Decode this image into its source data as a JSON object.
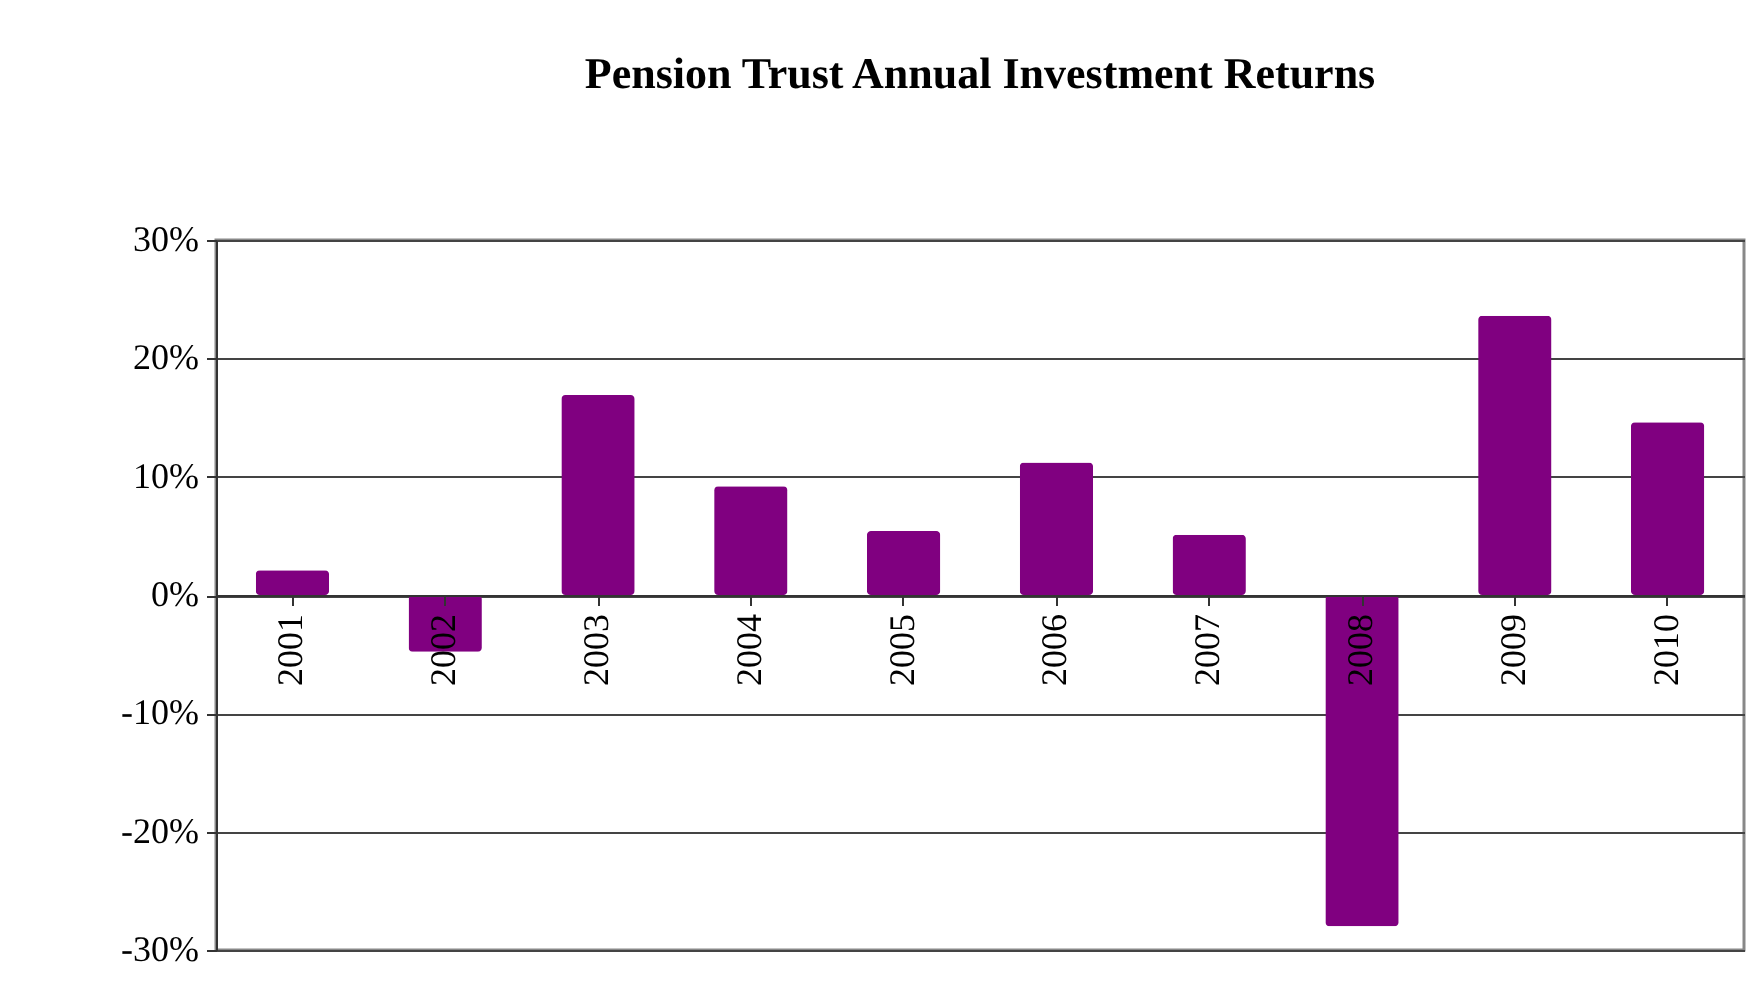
{
  "chart_data": {
    "type": "bar",
    "title": "Pension Trust Annual Investment Returns",
    "categories": [
      "2001",
      "2002",
      "2003",
      "2004",
      "2005",
      "2006",
      "2007",
      "2008",
      "2009",
      "2010"
    ],
    "values": [
      2.1,
      -4.8,
      16.9,
      9.2,
      5.4,
      11.2,
      5.1,
      -28.0,
      23.6,
      14.6
    ],
    "color": "#800080",
    "ylim": [
      -30,
      30
    ],
    "yticks": [
      {
        "value": -30,
        "label": "-30%"
      },
      {
        "value": -20,
        "label": "-20%"
      },
      {
        "value": -10,
        "label": "-10%"
      },
      {
        "value": 0,
        "label": "0%"
      },
      {
        "value": 10,
        "label": "10%"
      },
      {
        "value": 20,
        "label": "20%"
      },
      {
        "value": 30,
        "label": "30%"
      }
    ],
    "grid": "y"
  }
}
